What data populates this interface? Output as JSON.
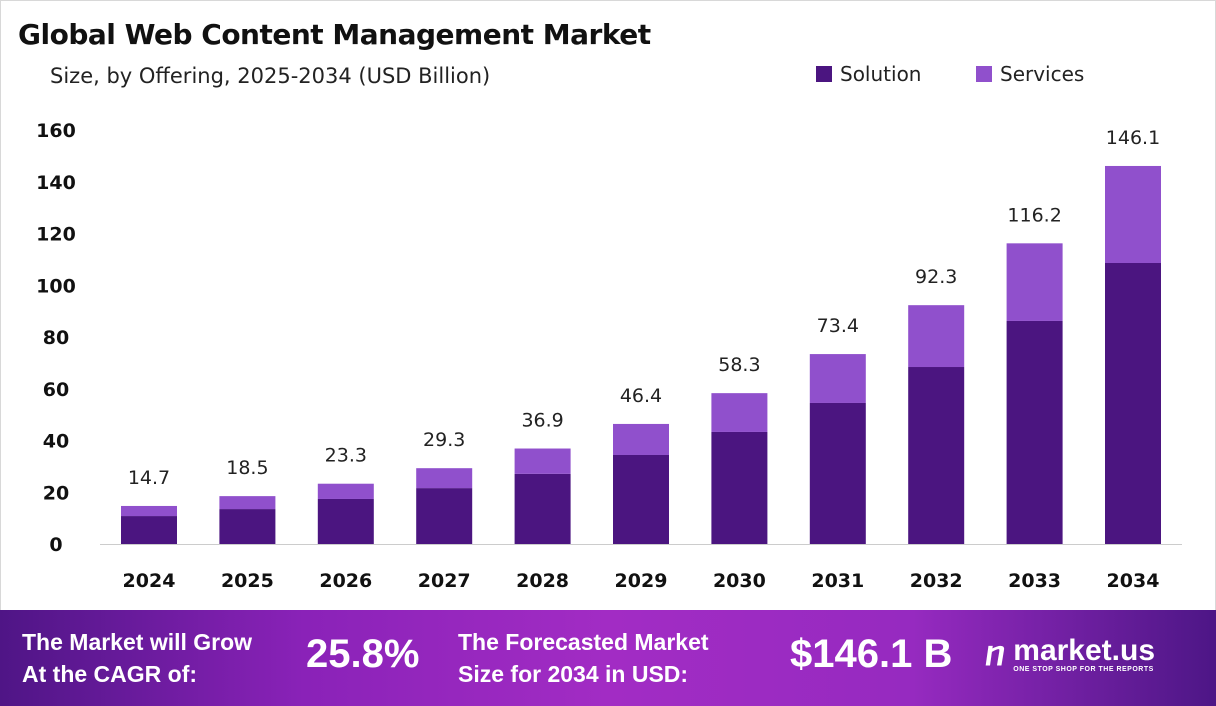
{
  "chart_data": {
    "type": "bar",
    "stacked": true,
    "title": "Global Web Content Management Market",
    "subtitle": "Size, by Offering, 2025-2034 (USD Billion)",
    "categories": [
      "2024",
      "2025",
      "2026",
      "2027",
      "2028",
      "2029",
      "2030",
      "2031",
      "2032",
      "2033",
      "2034"
    ],
    "series": [
      {
        "name": "Solution",
        "color": "#4b1580",
        "values": [
          10.8,
          13.5,
          17.4,
          21.6,
          27.1,
          34.4,
          43.3,
          54.5,
          68.4,
          86.2,
          108.6
        ]
      },
      {
        "name": "Services",
        "color": "#9050cc",
        "values": [
          3.9,
          5.0,
          5.9,
          7.7,
          9.8,
          12.0,
          15.0,
          18.9,
          23.9,
          30.0,
          37.5
        ]
      }
    ],
    "totals": [
      "14.7",
      "18.5",
      "23.3",
      "29.3",
      "36.9",
      "46.4",
      "58.3",
      "73.4",
      "92.3",
      "116.2",
      "146.1"
    ],
    "ylim": [
      0,
      160
    ],
    "yticks": [
      "0",
      "20",
      "40",
      "60",
      "80",
      "100",
      "120",
      "140",
      "160"
    ],
    "legend_position": "top-right",
    "grid": false
  },
  "footer": {
    "cagr_label_1": "The Market will Grow",
    "cagr_label_2": "At the CAGR of:",
    "cagr_value": "25.8%",
    "forecast_label_1": "The Forecasted Market",
    "forecast_label_2": "Size for 2034 in USD:",
    "forecast_value": "$146.1 B",
    "logo_name": "market.us",
    "logo_tagline": "ONE STOP SHOP FOR THE REPORTS"
  }
}
